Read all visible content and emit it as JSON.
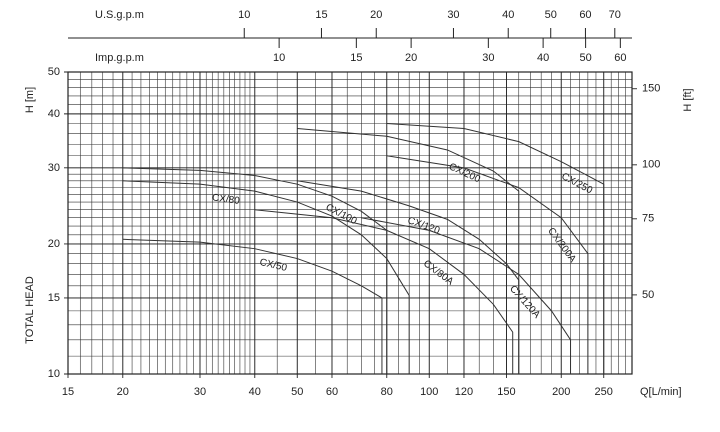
{
  "chart_data": {
    "type": "line",
    "x_label": "Q[L/min]",
    "y_label": "H [m]",
    "y_label_2": "TOTAL HEAD",
    "y2_label": "H [ft]",
    "xscale": "log",
    "yscale": "log",
    "y2scale": "log",
    "grid": true,
    "xlim": [
      15,
      290
    ],
    "ylim": [
      10,
      50
    ],
    "y2lim": [
      32.8,
      164
    ],
    "xticks": [
      15,
      20,
      30,
      40,
      50,
      60,
      80,
      100,
      120,
      150,
      200,
      250
    ],
    "yticks": [
      10,
      15,
      20,
      30,
      40,
      50
    ],
    "y2ticks": [
      50,
      75,
      100,
      150
    ],
    "xgrid": [
      16,
      17,
      18,
      19,
      20,
      21,
      22,
      23,
      24,
      25,
      26,
      27,
      28,
      29,
      30,
      31,
      32,
      33,
      34,
      35,
      36,
      37,
      38,
      39,
      40,
      45,
      50,
      55,
      60,
      65,
      70,
      75,
      80,
      85,
      90,
      95,
      100,
      110,
      120,
      130,
      140,
      150,
      160,
      170,
      180,
      190,
      200,
      210,
      220,
      230,
      240,
      250,
      260,
      270,
      280
    ],
    "ygrid": [
      11,
      12,
      13,
      14,
      15,
      16,
      17,
      18,
      19,
      20,
      21,
      22,
      23,
      24,
      25,
      26,
      27,
      28,
      29,
      30,
      32,
      34,
      36,
      38,
      40,
      42,
      44,
      46,
      48
    ],
    "top_axes": [
      {
        "label": "U.S.g.p.m",
        "xlim": [
          3.963,
          76.62
        ],
        "ticks": [
          10,
          15,
          20,
          30,
          40,
          50,
          60,
          70
        ]
      },
      {
        "label": "Imp.g.p.m",
        "xlim": [
          3.3,
          63.79
        ],
        "ticks": [
          10,
          15,
          20,
          30,
          40,
          50,
          60
        ]
      }
    ],
    "series": [
      {
        "name": "CX/50",
        "color": "#333333",
        "x": [
          20,
          30,
          40,
          50,
          60,
          70,
          78,
          78
        ],
        "values": [
          20.5,
          20.2,
          19.5,
          18.5,
          17.3,
          16.0,
          15.0,
          10
        ]
      },
      {
        "name": "CX/80",
        "color": "#333333",
        "x": [
          20,
          30,
          40,
          50,
          60,
          70,
          80,
          90,
          90
        ],
        "values": [
          28,
          27.5,
          26.5,
          25,
          23.2,
          21,
          18.5,
          15.2,
          10
        ]
      },
      {
        "name": "CX/100",
        "color": "#333333",
        "x": [
          20,
          30,
          40,
          50,
          60,
          70,
          80,
          80
        ],
        "values": [
          30,
          29.6,
          28.8,
          27.5,
          25.8,
          23.8,
          21.5,
          10
        ]
      },
      {
        "name": "CX/80A",
        "color": "#333333",
        "x": [
          40,
          60,
          80,
          100,
          120,
          140,
          155,
          155
        ],
        "values": [
          24,
          23,
          21.5,
          19.5,
          17,
          14.5,
          12.5,
          10
        ]
      },
      {
        "name": "CX/120",
        "color": "#333333",
        "x": [
          50,
          70,
          90,
          110,
          130,
          150,
          160,
          160
        ],
        "values": [
          28,
          26.5,
          24.5,
          22.8,
          20.5,
          18,
          16.5,
          10
        ]
      },
      {
        "name": "CX/120A",
        "color": "#333333",
        "x": [
          70,
          100,
          130,
          160,
          190,
          210,
          210
        ],
        "values": [
          23,
          21.5,
          19.5,
          17,
          14,
          12,
          10
        ]
      },
      {
        "name": "CX/200",
        "color": "#333333",
        "x": [
          50,
          80,
          110,
          140,
          160,
          160
        ],
        "values": [
          37,
          35.5,
          33,
          29.5,
          26.5,
          10
        ]
      },
      {
        "name": "CX/200A",
        "color": "#333333",
        "x": [
          80,
          120,
          160,
          200,
          230,
          230
        ],
        "values": [
          32,
          30,
          27,
          23,
          19,
          10
        ]
      },
      {
        "name": "CX/250",
        "color": "#333333",
        "x": [
          80,
          120,
          160,
          200,
          250,
          250
        ],
        "values": [
          38,
          37,
          34.5,
          31,
          27.5,
          10
        ]
      }
    ]
  }
}
